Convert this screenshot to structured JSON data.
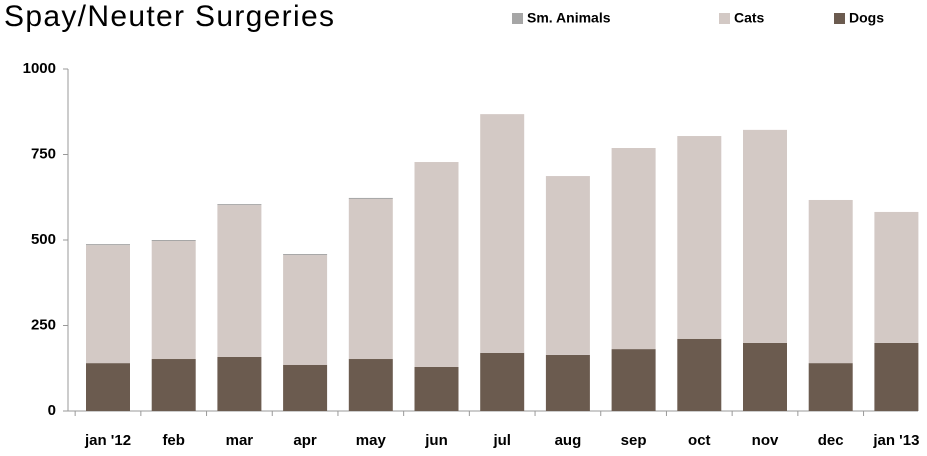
{
  "chart_data": {
    "type": "stacked_bar",
    "title": "Spay/Neuter Surgeries",
    "categories": [
      "jan '12",
      "feb",
      "mar",
      "apr",
      "may",
      "jun",
      "jul",
      "aug",
      "sep",
      "oct",
      "nov",
      "dec",
      "jan '13"
    ],
    "series": [
      {
        "name": "Sm. Animals",
        "color": "#a6a6a6",
        "values": [
          3,
          3,
          3,
          3,
          3,
          0,
          0,
          0,
          0,
          0,
          0,
          0,
          0
        ]
      },
      {
        "name": "Cats",
        "color": "#d3c9c5",
        "values": [
          345,
          345,
          444,
          321,
          468,
          599,
          698,
          523,
          588,
          593,
          623,
          477,
          383
        ]
      },
      {
        "name": "Dogs",
        "color": "#6b5b4f",
        "values": [
          140,
          152,
          158,
          135,
          152,
          129,
          170,
          164,
          181,
          211,
          199,
          140,
          199
        ]
      }
    ],
    "ylim": [
      0,
      1000
    ],
    "yticks": [
      0,
      250,
      500,
      750,
      1000
    ],
    "legend": "top-right"
  }
}
